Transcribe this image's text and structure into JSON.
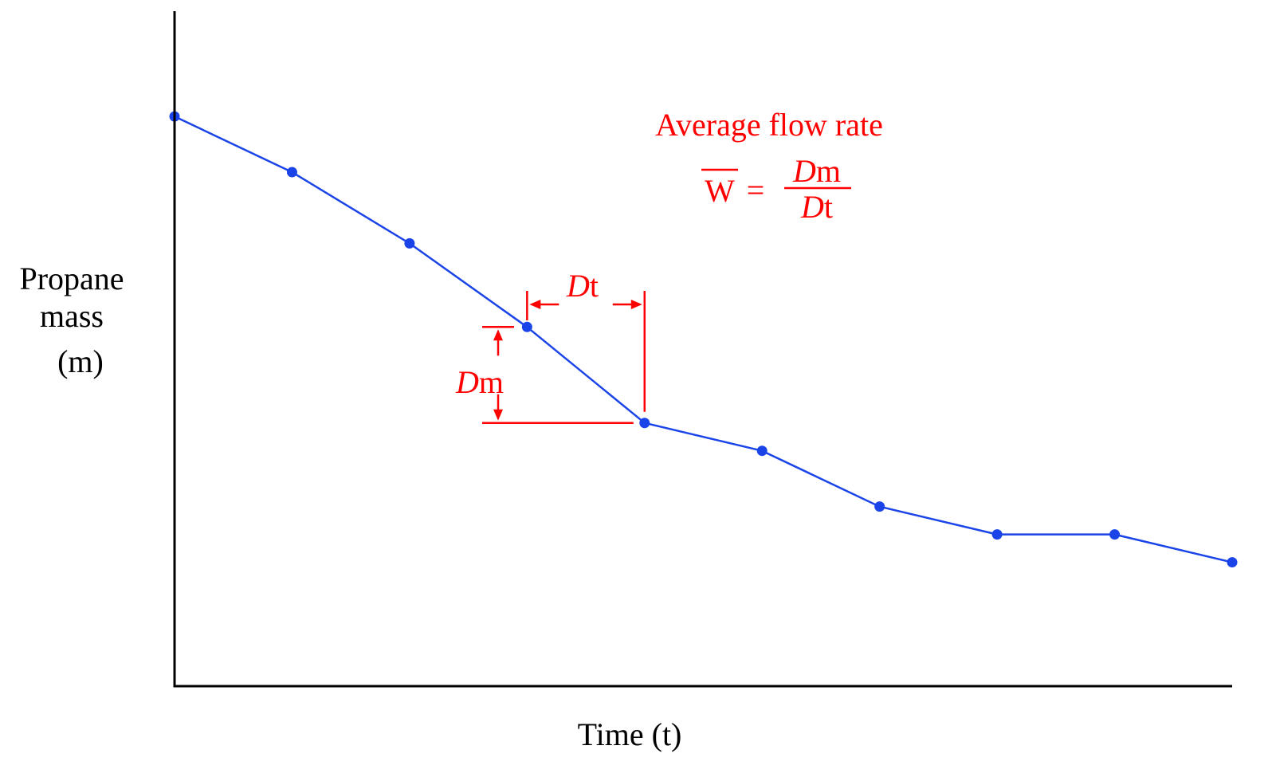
{
  "chart_data": {
    "type": "line",
    "title": "",
    "xlabel": "Time (t)",
    "ylabel_lines": [
      "Propane",
      "mass",
      "(m)"
    ],
    "grid": false,
    "legend": "none",
    "x": [
      0,
      1,
      2,
      3,
      4,
      5,
      6,
      7,
      8,
      9
    ],
    "series": [
      {
        "values": [
          7.3,
          6.4,
          5.25,
          3.9,
          2.35,
          1.9,
          1.0,
          0.55,
          0.55,
          0.1
        ]
      }
    ],
    "xlim": [
      0,
      9
    ],
    "ylim": [
      -1.9,
      9.0
    ],
    "annotations": {
      "formula_title": "Average flow rate",
      "formula_lhs": "W",
      "formula_eq": "=",
      "formula_num_italic": "D",
      "formula_num_rest": "m",
      "formula_den_italic": "D",
      "formula_den_rest": "t",
      "dt_italic": "D",
      "dt_rest": "t",
      "dm_italic": "D",
      "dm_rest": "m",
      "interval_start_index": 3,
      "interval_end_index": 4
    },
    "colors": {
      "series": "#1a44e8",
      "points": "#1a44e8",
      "annotation": "#ff0000",
      "axis": "#000000"
    }
  }
}
